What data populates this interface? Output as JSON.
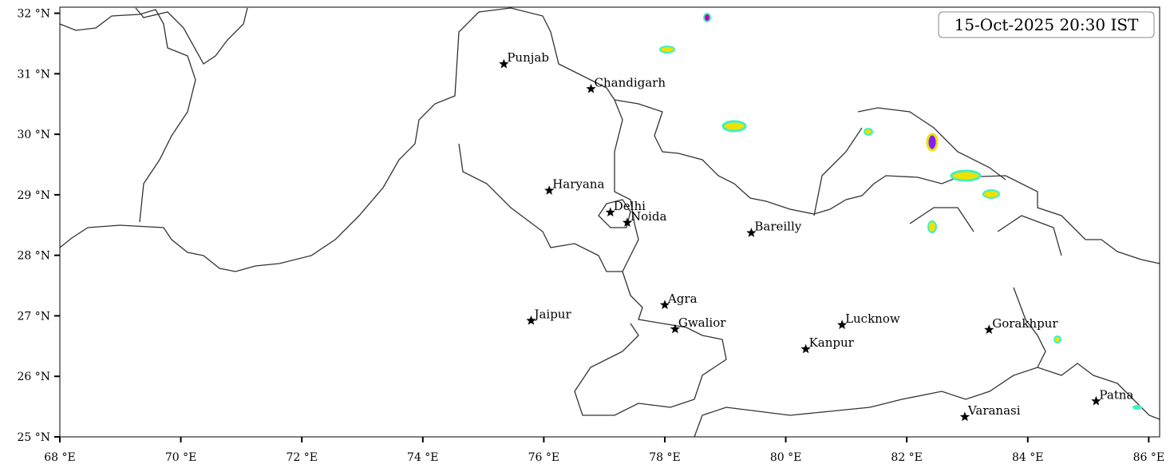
{
  "chart_data": {
    "type": "map",
    "annotation": "15-Oct-2025 20:30 IST",
    "xlim": [
      68,
      86.18
    ],
    "ylim": [
      25,
      32.1
    ],
    "xticks": [
      {
        "value": 68,
        "label": "68 °E"
      },
      {
        "value": 70,
        "label": "70 °E"
      },
      {
        "value": 72,
        "label": "72 °E"
      },
      {
        "value": 74,
        "label": "74 °E"
      },
      {
        "value": 76,
        "label": "76 °E"
      },
      {
        "value": 78,
        "label": "78 °E"
      },
      {
        "value": 80,
        "label": "80 °E"
      },
      {
        "value": 82,
        "label": "82 °E"
      },
      {
        "value": 84,
        "label": "84 °E"
      },
      {
        "value": 86,
        "label": "86 °E"
      }
    ],
    "yticks": [
      {
        "value": 25,
        "label": "25 °N"
      },
      {
        "value": 26,
        "label": "26 °N"
      },
      {
        "value": 27,
        "label": "27 °N"
      },
      {
        "value": 28,
        "label": "28 °N"
      },
      {
        "value": 29,
        "label": "29 °N"
      },
      {
        "value": 30,
        "label": "30 °N"
      },
      {
        "value": 31,
        "label": "31 °N"
      },
      {
        "value": 32,
        "label": "32 °N"
      }
    ],
    "cities": [
      {
        "name": "Punjab",
        "lon": 75.34,
        "lat": 31.16
      },
      {
        "name": "Chandigarh",
        "lon": 76.78,
        "lat": 30.75
      },
      {
        "name": "Haryana",
        "lon": 76.09,
        "lat": 29.07
      },
      {
        "name": "Delhi",
        "lon": 77.1,
        "lat": 28.71
      },
      {
        "name": "Noida",
        "lon": 77.38,
        "lat": 28.54
      },
      {
        "name": "Bareilly",
        "lon": 79.43,
        "lat": 28.37
      },
      {
        "name": "Agra",
        "lon": 78.0,
        "lat": 27.18
      },
      {
        "name": "Jaipur",
        "lon": 75.79,
        "lat": 26.92
      },
      {
        "name": "Gwalior",
        "lon": 78.17,
        "lat": 26.78
      },
      {
        "name": "Lucknow",
        "lon": 80.93,
        "lat": 26.85
      },
      {
        "name": "Kanpur",
        "lon": 80.33,
        "lat": 26.45
      },
      {
        "name": "Gorakhpur",
        "lon": 83.36,
        "lat": 26.77
      },
      {
        "name": "Varanasi",
        "lon": 82.96,
        "lat": 25.33
      },
      {
        "name": "Patna",
        "lon": 85.13,
        "lat": 25.59
      }
    ]
  }
}
